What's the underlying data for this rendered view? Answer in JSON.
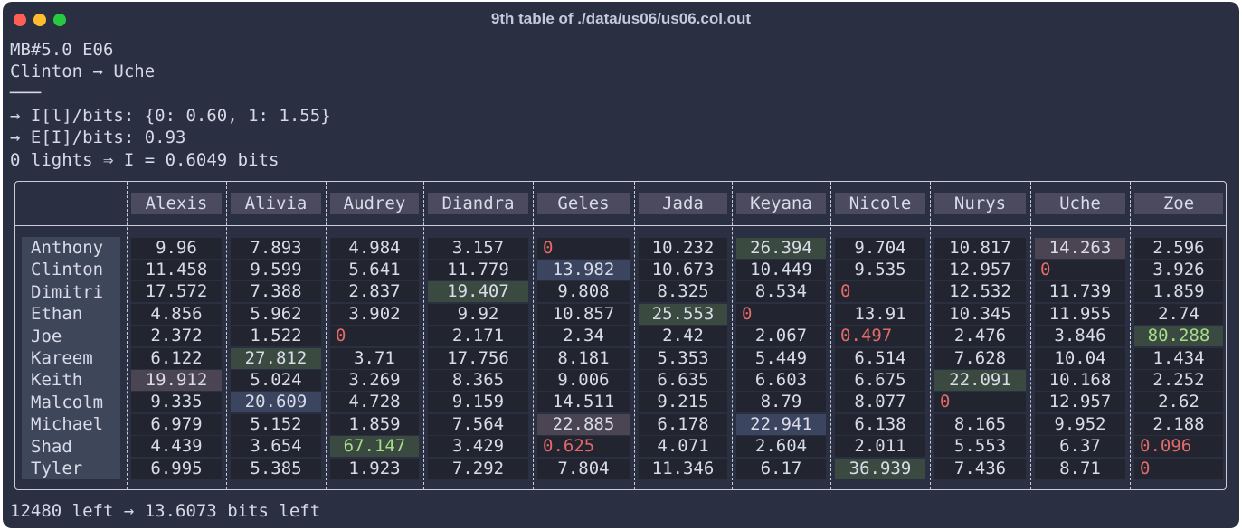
{
  "window": {
    "title": "9th table of ./data/us06/us06.col.out"
  },
  "header_lines": [
    "MB#5.0 E06",
    "Clinton → Uche",
    "───",
    "→ I[l]/bits: {0: 0.60, 1: 1.55}",
    "→ E[I]/bits: 0.93",
    "0 lights ⇒ I = 0.6049 bits"
  ],
  "columns": [
    "Alexis",
    "Alivia",
    "Audrey",
    "Diandra",
    "Geles",
    "Jada",
    "Keyana",
    "Nicole",
    "Nurys",
    "Uche",
    "Zoe"
  ],
  "rows": [
    {
      "name": "Anthony",
      "values": [
        "9.96",
        "7.893",
        "4.984",
        "3.157",
        "0",
        "10.232",
        "26.394",
        "9.704",
        "10.817",
        "14.263",
        "2.596"
      ]
    },
    {
      "name": "Clinton",
      "values": [
        "11.458",
        "9.599",
        "5.641",
        "11.779",
        "13.982",
        "10.673",
        "10.449",
        "9.535",
        "12.957",
        "0",
        "3.926"
      ]
    },
    {
      "name": "Dimitri",
      "values": [
        "17.572",
        "7.388",
        "2.837",
        "19.407",
        "9.808",
        "8.325",
        "8.534",
        "0",
        "12.532",
        "11.739",
        "1.859"
      ]
    },
    {
      "name": "Ethan",
      "values": [
        "4.856",
        "5.962",
        "3.902",
        "9.92",
        "10.857",
        "25.553",
        "0",
        "13.91",
        "10.345",
        "11.955",
        "2.74"
      ]
    },
    {
      "name": "Joe",
      "values": [
        "2.372",
        "1.522",
        "0",
        "2.171",
        "2.34",
        "2.42",
        "2.067",
        "0.497",
        "2.476",
        "3.846",
        "80.288"
      ]
    },
    {
      "name": "Kareem",
      "values": [
        "6.122",
        "27.812",
        "3.71",
        "17.756",
        "8.181",
        "5.353",
        "5.449",
        "6.514",
        "7.628",
        "10.04",
        "1.434"
      ]
    },
    {
      "name": "Keith",
      "values": [
        "19.912",
        "5.024",
        "3.269",
        "8.365",
        "9.006",
        "6.635",
        "6.603",
        "6.675",
        "22.091",
        "10.168",
        "2.252"
      ]
    },
    {
      "name": "Malcolm",
      "values": [
        "9.335",
        "20.609",
        "4.728",
        "9.159",
        "14.511",
        "9.215",
        "8.79",
        "8.077",
        "0",
        "12.957",
        "2.62"
      ]
    },
    {
      "name": "Michael",
      "values": [
        "6.979",
        "5.152",
        "1.859",
        "7.564",
        "22.885",
        "6.178",
        "22.941",
        "6.138",
        "8.165",
        "9.952",
        "2.188"
      ]
    },
    {
      "name": "Shad",
      "values": [
        "4.439",
        "3.654",
        "67.147",
        "3.429",
        "0.625",
        "4.071",
        "2.604",
        "2.011",
        "5.553",
        "6.37",
        "0.096"
      ]
    },
    {
      "name": "Tyler",
      "values": [
        "6.995",
        "5.385",
        "1.923",
        "7.292",
        "7.804",
        "11.346",
        "6.17",
        "36.939",
        "7.436",
        "8.71",
        "0"
      ]
    }
  ],
  "highlights": {
    "pink": [
      "0,9",
      "6,0",
      "8,4"
    ],
    "green": [
      "0,6",
      "2,3",
      "3,5",
      "5,1",
      "6,8",
      "9,2",
      "10,7",
      "4,10"
    ],
    "blue": [
      "1,4",
      "7,1",
      "8,6"
    ],
    "red": [
      "0,4",
      "1,9",
      "2,7",
      "3,6",
      "4,2",
      "4,7",
      "7,8",
      "9,4",
      "9,10",
      "10,10"
    ],
    "bright": [
      "9,2",
      "4,10"
    ]
  },
  "footer": "12480 left → 13.6073 bits left",
  "colors": {
    "background": "#2b2f42",
    "cell": "#22252f",
    "header_cell": "#4b4a5e",
    "highlight_green": "#3a4a40",
    "highlight_pink": "#4b4452",
    "highlight_blue": "#3c4560",
    "zero_red": "#e46a6a"
  }
}
